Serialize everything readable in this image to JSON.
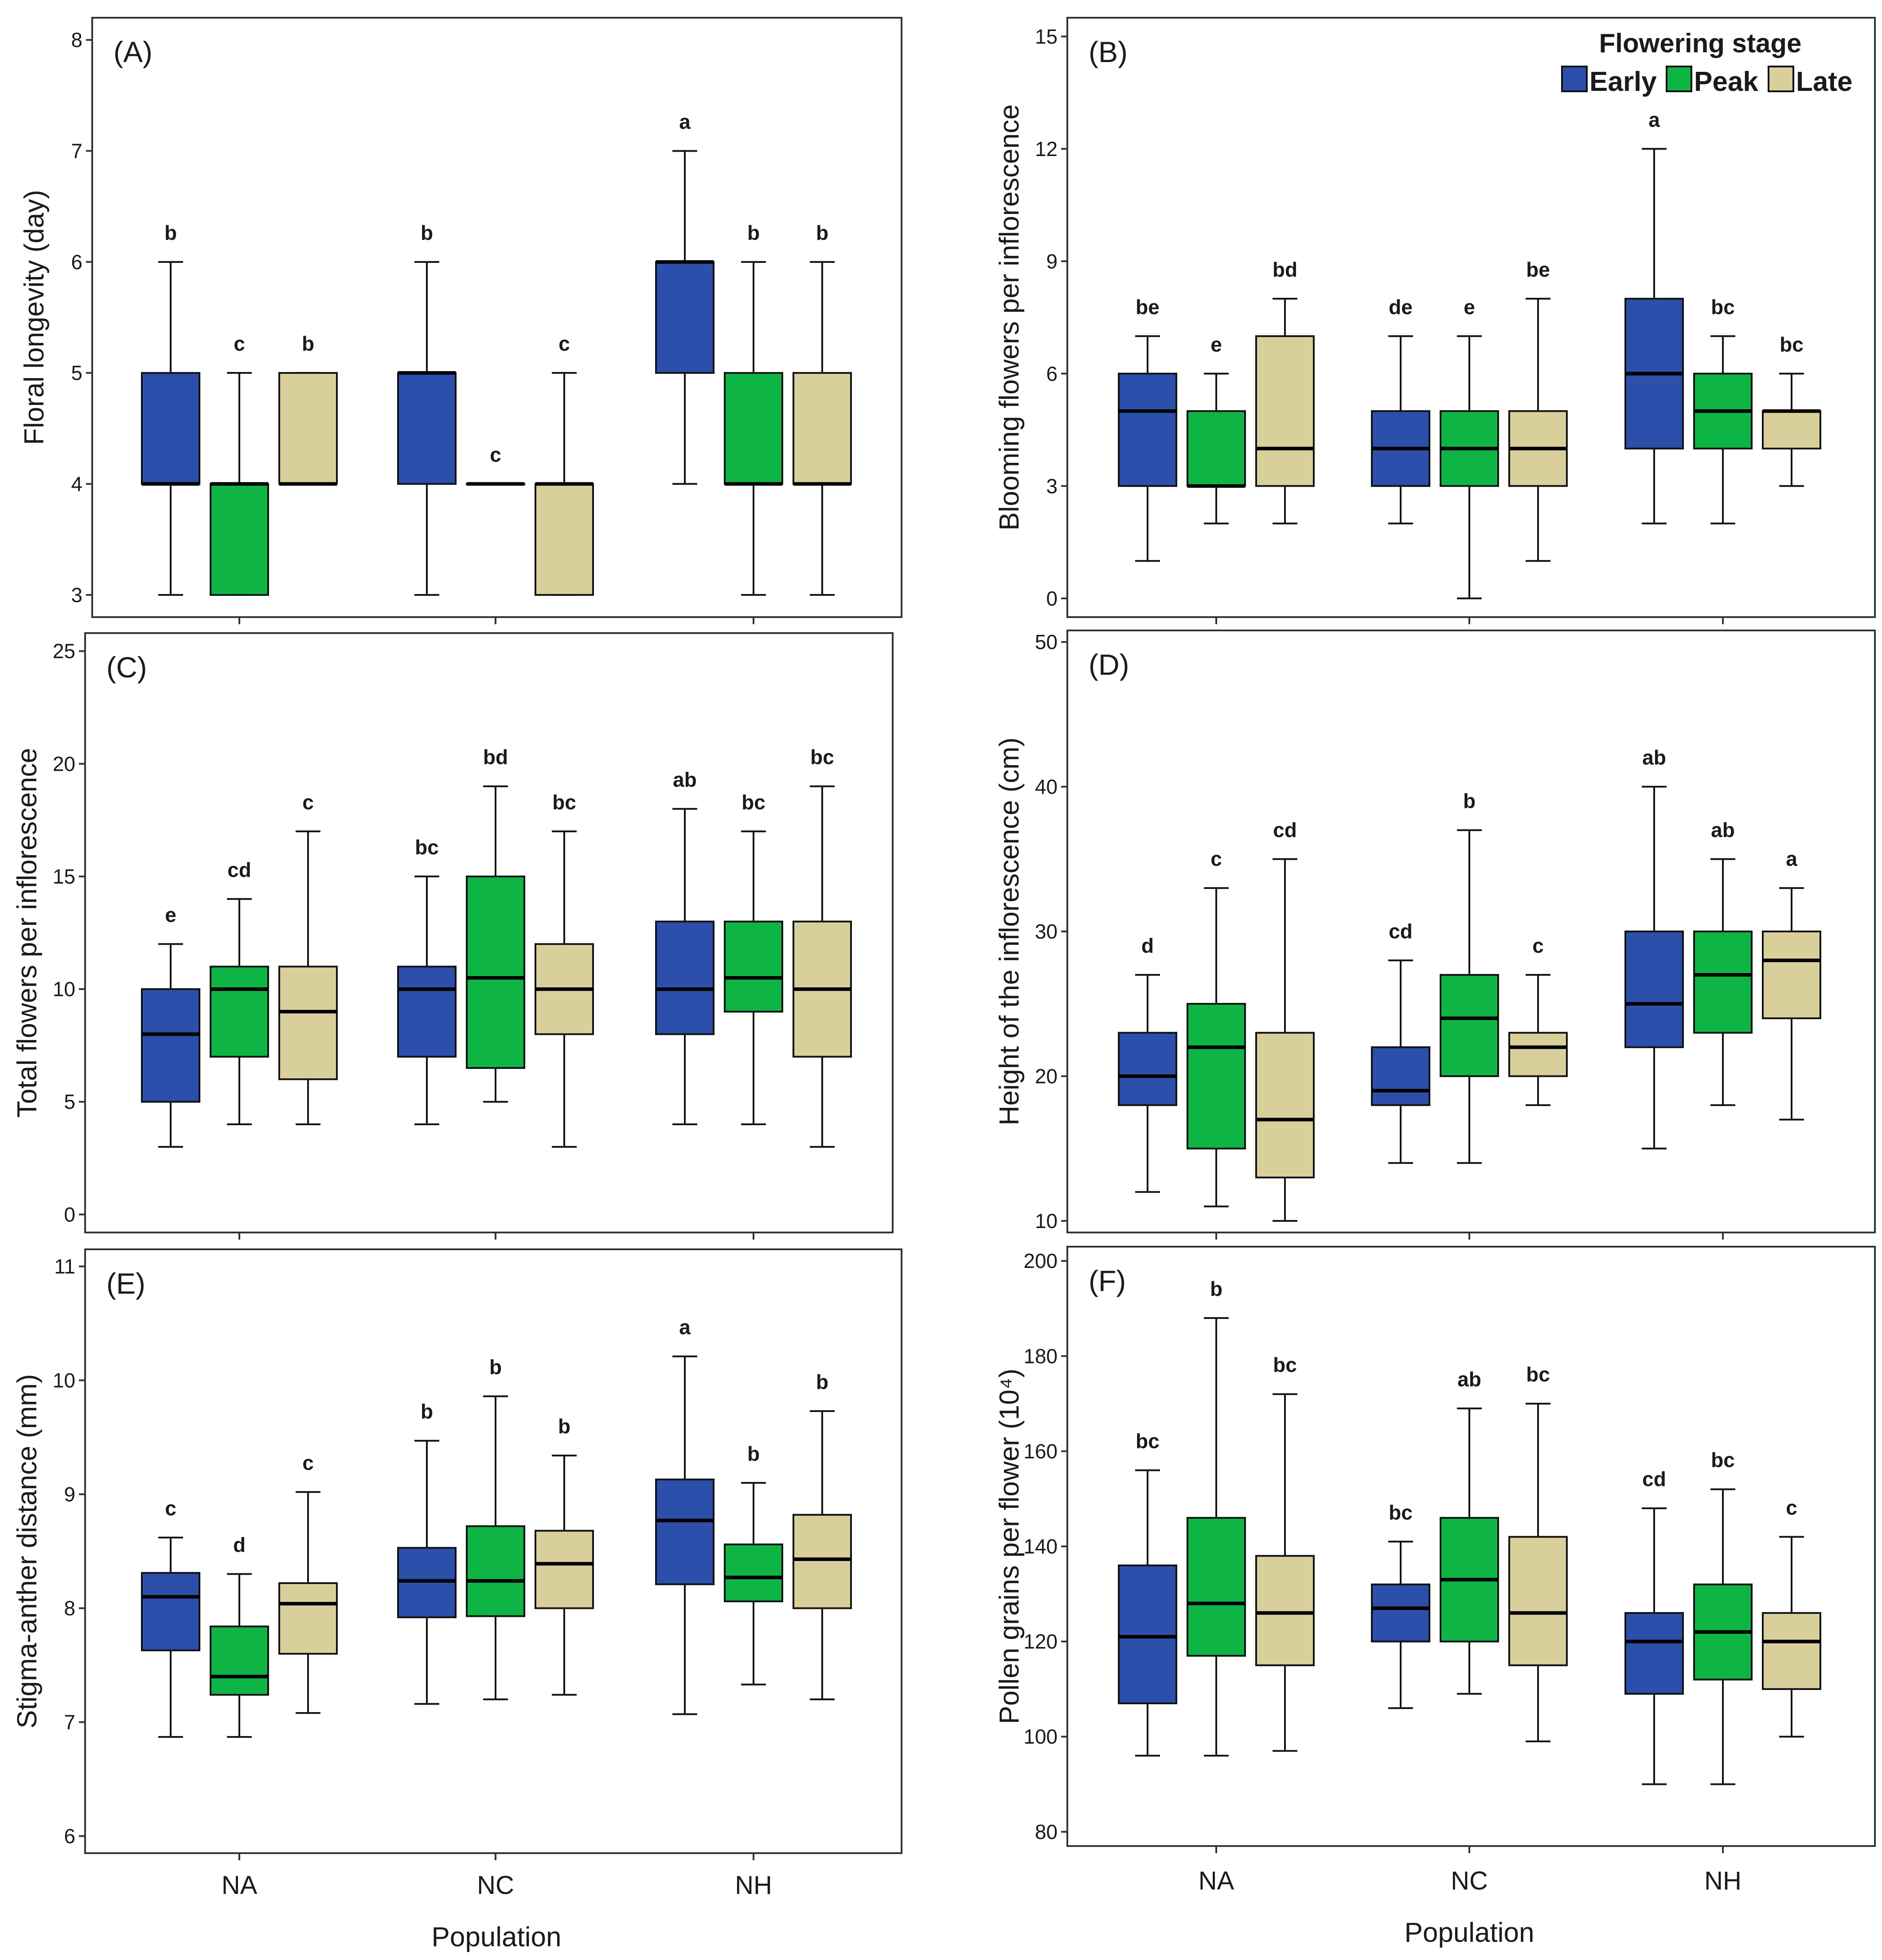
{
  "figure": {
    "legend": {
      "title": "Flowering  stage",
      "items": [
        {
          "label": "Early",
          "color": "#2b4faa"
        },
        {
          "label": "Peak",
          "color": "#0fb544"
        },
        {
          "label": "Late",
          "color": "#d8cf9b"
        }
      ]
    },
    "x_axis_title": "Population",
    "categories": [
      "NA",
      "NC",
      "NH"
    ]
  },
  "chart_data": [
    {
      "type": "boxplot",
      "panel": "(A)",
      "ylabel": "Floral longevity (day)",
      "ylim": [
        2.8,
        8.2
      ],
      "yticks": [
        3,
        4,
        5,
        6,
        7,
        8
      ],
      "categories": [
        "NA",
        "NC",
        "NH"
      ],
      "series": [
        {
          "name": "Early",
          "boxes": [
            {
              "min": 3,
              "q1": 4,
              "median": 4,
              "q3": 5,
              "max": 6,
              "letter": "b"
            },
            {
              "min": 3,
              "q1": 4,
              "median": 5,
              "q3": 5,
              "max": 6,
              "letter": "b"
            },
            {
              "min": 4,
              "q1": 5,
              "median": 6,
              "q3": 6,
              "max": 7,
              "letter": "a"
            }
          ]
        },
        {
          "name": "Peak",
          "boxes": [
            {
              "min": 3,
              "q1": 3,
              "median": 4,
              "q3": 4,
              "max": 5,
              "letter": "c"
            },
            {
              "min": 4,
              "q1": 4,
              "median": 4,
              "q3": 4,
              "max": 4,
              "letter": "c"
            },
            {
              "min": 3,
              "q1": 4,
              "median": 4,
              "q3": 5,
              "max": 6,
              "letter": "b"
            }
          ]
        },
        {
          "name": "Late",
          "boxes": [
            {
              "min": 4,
              "q1": 4,
              "median": 4,
              "q3": 5,
              "max": 5,
              "letter": "b"
            },
            {
              "min": 3,
              "q1": 3,
              "median": 4,
              "q3": 4,
              "max": 5,
              "letter": "c"
            },
            {
              "min": 3,
              "q1": 4,
              "median": 4,
              "q3": 5,
              "max": 6,
              "letter": "b"
            }
          ]
        }
      ]
    },
    {
      "type": "boxplot",
      "panel": "(B)",
      "ylabel": "Blooming flowers per inflorescence",
      "ylim": [
        -0.5,
        15.5
      ],
      "yticks": [
        0,
        3,
        6,
        9,
        12,
        15
      ],
      "categories": [
        "NA",
        "NC",
        "NH"
      ],
      "series": [
        {
          "name": "Early",
          "boxes": [
            {
              "min": 1,
              "q1": 3,
              "median": 5,
              "q3": 6,
              "max": 7,
              "letter": "be"
            },
            {
              "min": 2,
              "q1": 3,
              "median": 4,
              "q3": 5,
              "max": 7,
              "letter": "de"
            },
            {
              "min": 2,
              "q1": 4,
              "median": 6,
              "q3": 8,
              "max": 12,
              "letter": "a"
            }
          ]
        },
        {
          "name": "Peak",
          "boxes": [
            {
              "min": 2,
              "q1": 3,
              "median": 3,
              "q3": 5,
              "max": 6,
              "letter": "e"
            },
            {
              "min": 0,
              "q1": 3,
              "median": 4,
              "q3": 5,
              "max": 7,
              "letter": "e"
            },
            {
              "min": 2,
              "q1": 4,
              "median": 5,
              "q3": 6,
              "max": 7,
              "letter": "bc"
            }
          ]
        },
        {
          "name": "Late",
          "boxes": [
            {
              "min": 2,
              "q1": 3,
              "median": 4,
              "q3": 7,
              "max": 8,
              "letter": "bd"
            },
            {
              "min": 1,
              "q1": 3,
              "median": 4,
              "q3": 5,
              "max": 8,
              "letter": "be"
            },
            {
              "min": 3,
              "q1": 4,
              "median": 5,
              "q3": 5,
              "max": 6,
              "letter": "bc"
            }
          ]
        }
      ]
    },
    {
      "type": "boxplot",
      "panel": "(C)",
      "ylabel": "Total flowers per inflorescence",
      "ylim": [
        -0.8,
        25.8
      ],
      "yticks": [
        0,
        5,
        10,
        15,
        20,
        25
      ],
      "categories": [
        "NA",
        "NC",
        "NH"
      ],
      "series": [
        {
          "name": "Early",
          "boxes": [
            {
              "min": 3,
              "q1": 5,
              "median": 8,
              "q3": 10,
              "max": 12,
              "letter": "e"
            },
            {
              "min": 4,
              "q1": 7,
              "median": 10,
              "q3": 11,
              "max": 15,
              "letter": "bc"
            },
            {
              "min": 4,
              "q1": 8,
              "median": 10,
              "q3": 13,
              "max": 18,
              "letter": "ab"
            }
          ]
        },
        {
          "name": "Peak",
          "boxes": [
            {
              "min": 4,
              "q1": 7,
              "median": 10,
              "q3": 11,
              "max": 14,
              "letter": "cd"
            },
            {
              "min": 5,
              "q1": 6.5,
              "median": 10.5,
              "q3": 15,
              "max": 19,
              "letter": "bd"
            },
            {
              "min": 4,
              "q1": 9,
              "median": 10.5,
              "q3": 13,
              "max": 17,
              "letter": "bc"
            }
          ]
        },
        {
          "name": "Late",
          "boxes": [
            {
              "min": 4,
              "q1": 6,
              "median": 9,
              "q3": 11,
              "max": 17,
              "letter": "c"
            },
            {
              "min": 3,
              "q1": 8,
              "median": 10,
              "q3": 12,
              "max": 17,
              "letter": "bc"
            },
            {
              "min": 3,
              "q1": 7,
              "median": 10,
              "q3": 13,
              "max": 19,
              "letter": "bc"
            }
          ]
        }
      ]
    },
    {
      "type": "boxplot",
      "panel": "(D)",
      "ylabel": "Height of the inflorescence (cm)",
      "ylim": [
        9.2,
        50.8
      ],
      "yticks": [
        10,
        20,
        30,
        40,
        50
      ],
      "categories": [
        "NA",
        "NC",
        "NH"
      ],
      "series": [
        {
          "name": "Early",
          "boxes": [
            {
              "min": 12,
              "q1": 18,
              "median": 20,
              "q3": 23,
              "max": 27,
              "letter": "d"
            },
            {
              "min": 14,
              "q1": 18,
              "median": 19,
              "q3": 22,
              "max": 28,
              "letter": "cd"
            },
            {
              "min": 15,
              "q1": 22,
              "median": 25,
              "q3": 30,
              "max": 40,
              "letter": "ab"
            }
          ]
        },
        {
          "name": "Peak",
          "boxes": [
            {
              "min": 11,
              "q1": 15,
              "median": 22,
              "q3": 25,
              "max": 33,
              "letter": "c"
            },
            {
              "min": 14,
              "q1": 20,
              "median": 24,
              "q3": 27,
              "max": 37,
              "letter": "b"
            },
            {
              "min": 18,
              "q1": 23,
              "median": 27,
              "q3": 30,
              "max": 35,
              "letter": "ab"
            }
          ]
        },
        {
          "name": "Late",
          "boxes": [
            {
              "min": 10,
              "q1": 13,
              "median": 17,
              "q3": 23,
              "max": 35,
              "letter": "cd"
            },
            {
              "min": 18,
              "q1": 20,
              "median": 22,
              "q3": 23,
              "max": 27,
              "letter": "c"
            },
            {
              "min": 17,
              "q1": 24,
              "median": 28,
              "q3": 30,
              "max": 33,
              "letter": "a"
            }
          ]
        }
      ]
    },
    {
      "type": "boxplot",
      "panel": "(E)",
      "ylabel": "Stigma-anther distance (mm)",
      "ylim": [
        5.85,
        11.15
      ],
      "yticks": [
        6,
        7,
        8,
        9,
        10,
        11
      ],
      "categories": [
        "NA",
        "NC",
        "NH"
      ],
      "series": [
        {
          "name": "Early",
          "boxes": [
            {
              "min": 6.87,
              "q1": 7.63,
              "median": 8.1,
              "q3": 8.31,
              "max": 8.62,
              "letter": "c"
            },
            {
              "min": 7.16,
              "q1": 7.92,
              "median": 8.24,
              "q3": 8.53,
              "max": 9.47,
              "letter": "b"
            },
            {
              "min": 7.07,
              "q1": 8.21,
              "median": 8.77,
              "q3": 9.13,
              "max": 10.21,
              "letter": "a"
            }
          ]
        },
        {
          "name": "Peak",
          "boxes": [
            {
              "min": 6.87,
              "q1": 7.24,
              "median": 7.4,
              "q3": 7.84,
              "max": 8.3,
              "letter": "d"
            },
            {
              "min": 7.2,
              "q1": 7.93,
              "median": 8.24,
              "q3": 8.72,
              "max": 9.86,
              "letter": "b"
            },
            {
              "min": 7.33,
              "q1": 8.06,
              "median": 8.27,
              "q3": 8.56,
              "max": 9.1,
              "letter": "b"
            }
          ]
        },
        {
          "name": "Late",
          "boxes": [
            {
              "min": 7.08,
              "q1": 7.6,
              "median": 8.04,
              "q3": 8.22,
              "max": 9.02,
              "letter": "c"
            },
            {
              "min": 7.24,
              "q1": 8.0,
              "median": 8.39,
              "q3": 8.68,
              "max": 9.34,
              "letter": "b"
            },
            {
              "min": 7.2,
              "q1": 8.0,
              "median": 8.43,
              "q3": 8.82,
              "max": 9.73,
              "letter": "b"
            }
          ]
        }
      ]
    },
    {
      "type": "boxplot",
      "panel": "(F)",
      "ylabel": "Pollen grains per flower (10⁴)",
      "ylim": [
        77,
        203
      ],
      "yticks": [
        80,
        100,
        120,
        140,
        160,
        180,
        200
      ],
      "categories": [
        "NA",
        "NC",
        "NH"
      ],
      "series": [
        {
          "name": "Early",
          "boxes": [
            {
              "min": 96,
              "q1": 107,
              "median": 121,
              "q3": 136,
              "max": 156,
              "letter": "bc"
            },
            {
              "min": 106,
              "q1": 120,
              "median": 127,
              "q3": 132,
              "max": 141,
              "letter": "bc"
            },
            {
              "min": 90,
              "q1": 109,
              "median": 120,
              "q3": 126,
              "max": 148,
              "letter": "cd"
            }
          ]
        },
        {
          "name": "Peak",
          "boxes": [
            {
              "min": 96,
              "q1": 117,
              "median": 128,
              "q3": 146,
              "max": 188,
              "letter": "b"
            },
            {
              "min": 109,
              "q1": 120,
              "median": 133,
              "q3": 146,
              "max": 169,
              "letter": "ab"
            },
            {
              "min": 90,
              "q1": 112,
              "median": 122,
              "q3": 132,
              "max": 152,
              "letter": "bc"
            }
          ]
        },
        {
          "name": "Late",
          "boxes": [
            {
              "min": 97,
              "q1": 115,
              "median": 126,
              "q3": 138,
              "max": 172,
              "letter": "bc"
            },
            {
              "min": 99,
              "q1": 115,
              "median": 126,
              "q3": 142,
              "max": 170,
              "letter": "bc"
            },
            {
              "min": 100,
              "q1": 110,
              "median": 120,
              "q3": 126,
              "max": 142,
              "letter": "c"
            }
          ]
        }
      ]
    }
  ]
}
